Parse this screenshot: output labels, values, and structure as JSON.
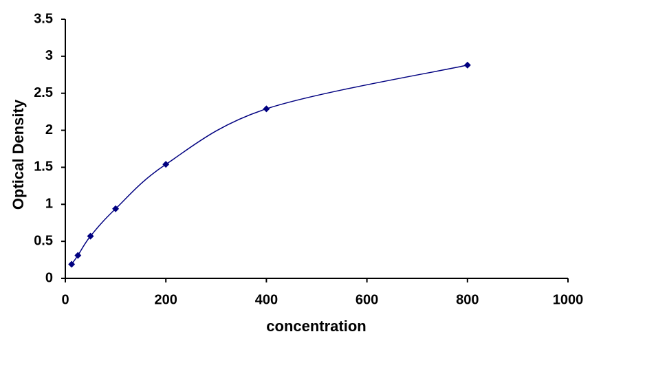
{
  "chart_data": {
    "type": "scatter",
    "x_label": "concentration",
    "y_label": "Optical Density",
    "series": [
      {
        "color": "#000080",
        "x": [
          12.5,
          25,
          50,
          100,
          200,
          400,
          800
        ],
        "values": [
          0.19,
          0.31,
          0.57,
          0.94,
          1.54,
          2.29,
          2.88
        ]
      }
    ],
    "smooth_line": true,
    "xlim": [
      0,
      1000
    ],
    "xticks": [
      0,
      200,
      400,
      600,
      800,
      1000
    ],
    "ylim": [
      0,
      3.5
    ],
    "yticks": [
      0,
      0.5,
      1,
      1.5,
      2,
      2.5,
      3,
      3.5
    ],
    "grid": false
  }
}
